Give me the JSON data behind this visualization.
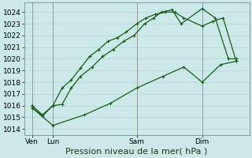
{
  "bg_color": "#cce8e8",
  "grid_color": "#b8d8d8",
  "line_color": "#1a5c1a",
  "marker_color": "#1a5c1a",
  "ylabel_ticks": [
    1014,
    1015,
    1016,
    1017,
    1018,
    1019,
    1020,
    1021,
    1022,
    1023,
    1024
  ],
  "ylim": [
    1013.5,
    1024.8
  ],
  "xlabel": "Pression niveau de la mer( hPa )",
  "x_tick_labels": [
    "Ven",
    "Lun",
    "Sam",
    "Dim"
  ],
  "x_tick_positions": [
    0,
    0.8,
    4.0,
    6.5
  ],
  "xlim": [
    -0.3,
    8.3
  ],
  "line1_x": [
    0,
    0.4,
    0.8,
    1.15,
    1.5,
    1.85,
    2.2,
    2.55,
    2.9,
    3.25,
    3.6,
    4.0,
    4.35,
    4.7,
    5.1,
    5.45,
    5.8,
    6.5,
    6.9,
    7.3,
    7.8
  ],
  "line1_y": [
    1016,
    1015.2,
    1016,
    1017.5,
    1018.2,
    1019.2,
    1020.2,
    1020.8,
    1021.5,
    1021.8,
    1022.3,
    1023,
    1023.5,
    1023.8,
    1024.0,
    1024.0,
    1023.5,
    1022.8,
    1023.2,
    1023.5,
    1019.8
  ],
  "line2_x": [
    0,
    0.4,
    0.8,
    1.15,
    1.5,
    1.85,
    2.3,
    2.7,
    3.1,
    3.5,
    3.9,
    4.3,
    4.65,
    4.95,
    5.35,
    5.7,
    6.5,
    7.0,
    7.5,
    7.8
  ],
  "line2_y": [
    1016,
    1015.1,
    1016,
    1016.1,
    1017.5,
    1018.5,
    1019.3,
    1020.2,
    1020.8,
    1021.5,
    1022.0,
    1023.0,
    1023.5,
    1024.0,
    1024.2,
    1023.0,
    1024.3,
    1023.5,
    1020.0,
    1020.0
  ],
  "line3_x": [
    0,
    0.8,
    2.0,
    3.0,
    4.0,
    5.0,
    5.8,
    6.5,
    7.2,
    7.8
  ],
  "line3_y": [
    1015.8,
    1014.3,
    1015.2,
    1016.2,
    1017.5,
    1018.5,
    1019.3,
    1018.0,
    1019.5,
    1019.8
  ],
  "tick_fontsize": 6.5,
  "xlabel_fontsize": 8
}
